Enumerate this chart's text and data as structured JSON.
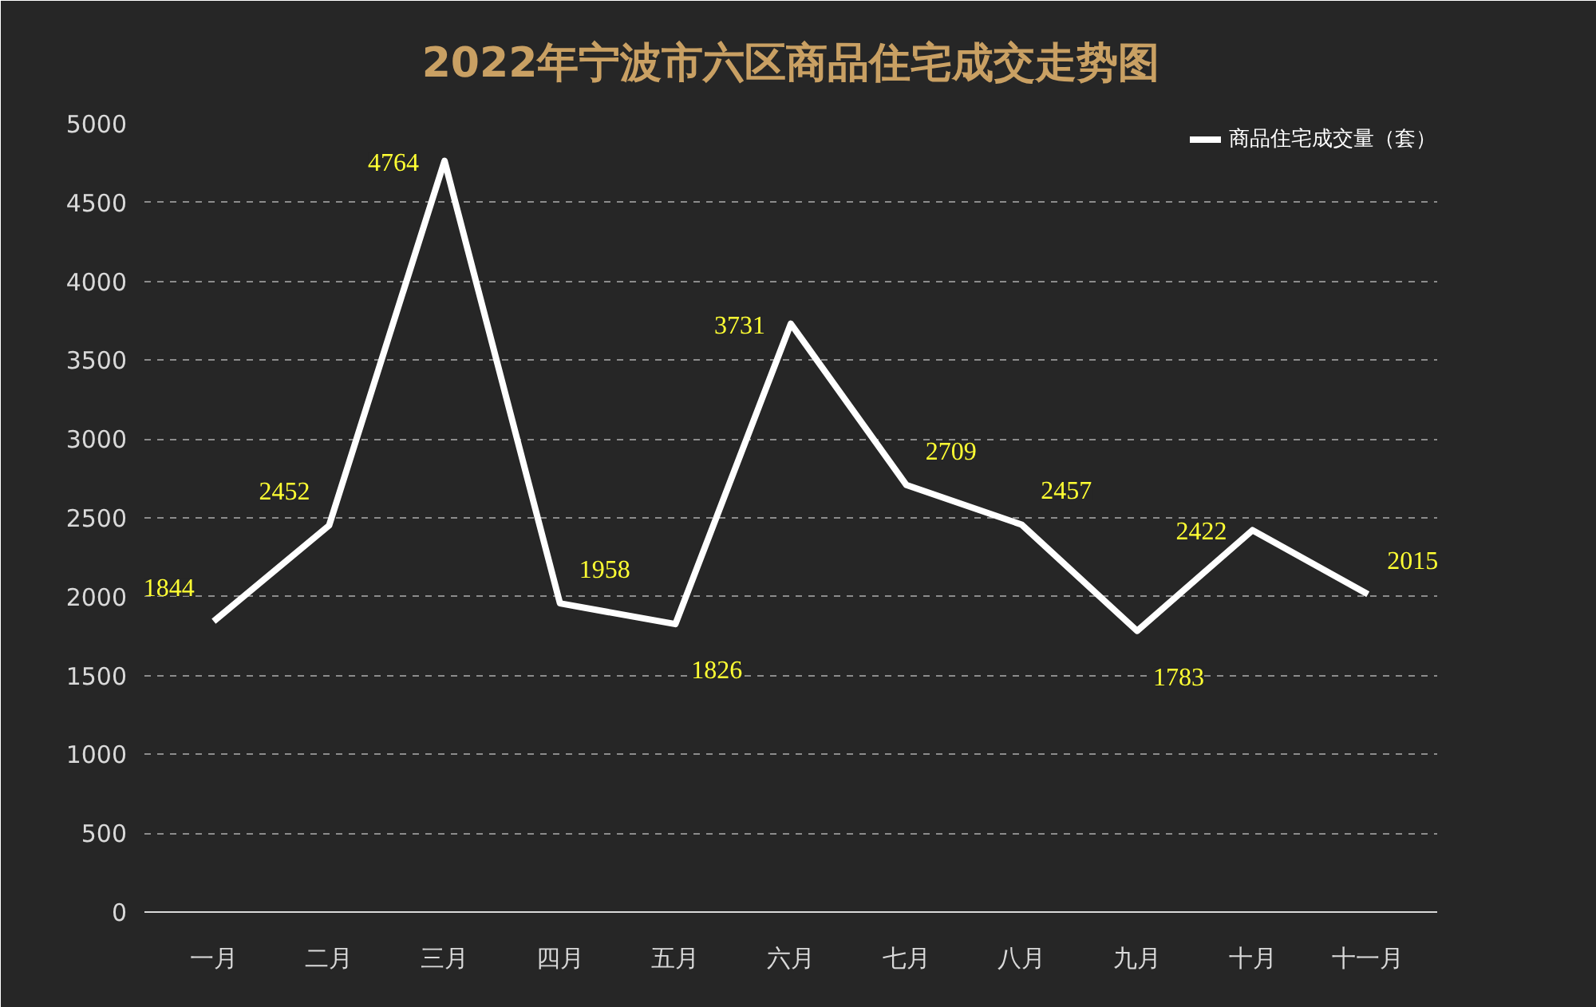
{
  "chart_data": {
    "type": "line",
    "title": "2022年宁波市六区商品住宅成交走势图",
    "categories": [
      "一月",
      "二月",
      "三月",
      "四月",
      "五月",
      "六月",
      "七月",
      "八月",
      "九月",
      "十月",
      "十一月"
    ],
    "series": [
      {
        "name": "商品住宅成交量（套）",
        "color": "#ffffff",
        "values": [
          1844,
          2452,
          4764,
          1958,
          1826,
          3731,
          2709,
          2457,
          1783,
          2422,
          2015
        ]
      }
    ],
    "ylim": [
      0,
      5000
    ],
    "yticks": [
      0,
      500,
      1000,
      1500,
      2000,
      2500,
      3000,
      3500,
      4000,
      4500,
      5000
    ],
    "grid": "y",
    "legend": "top right",
    "data_labels": true,
    "marker": "none",
    "line_style": "solid"
  }
}
